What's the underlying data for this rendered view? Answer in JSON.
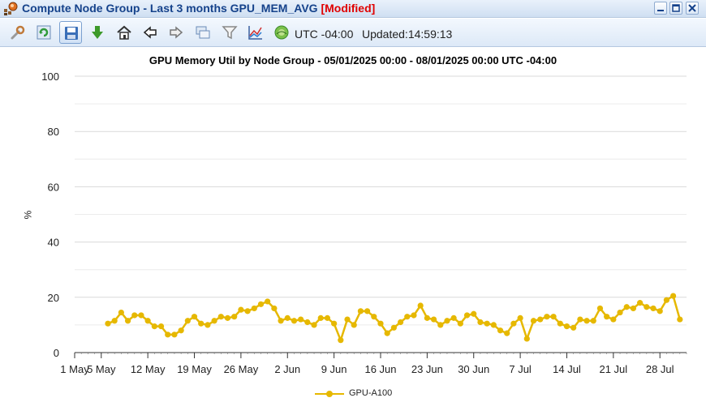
{
  "window": {
    "title": "Compute Node Group - Last 3 months GPU_MEM_AVG",
    "modified_tag": "[Modified]",
    "app_icon": "node-group-icon",
    "buttons": [
      "minimize-icon",
      "maximize-icon",
      "close-icon"
    ]
  },
  "toolbar": {
    "buttons": [
      "wrench-icon",
      "refresh-icon",
      "save-icon",
      "download-icon",
      "home-icon",
      "back-arrow-icon",
      "forward-arrow-icon",
      "windows-icon",
      "filter-icon",
      "chart-icon",
      "globe-icon"
    ],
    "timezone": "UTC -04:00",
    "updated": "Updated:14:59:13"
  },
  "colors": {
    "series": "#e6b800",
    "title_text": "#15428b",
    "modified": "#e00000"
  },
  "chart_data": {
    "type": "line",
    "title": "GPU Memory Util by Node Group - 05/01/2025 00:00 - 08/01/2025 00:00 UTC -04:00",
    "ylabel": "%",
    "xlabel": "",
    "ylim": [
      0,
      100
    ],
    "yticks": [
      0,
      20,
      40,
      60,
      80,
      100
    ],
    "xlim": [
      "2025-05-01",
      "2025-08-01"
    ],
    "xticks": [
      {
        "date": "2025-05-01",
        "label": "1 May"
      },
      {
        "date": "2025-05-05",
        "label": "5 May"
      },
      {
        "date": "2025-05-12",
        "label": "12 May"
      },
      {
        "date": "2025-05-19",
        "label": "19 May"
      },
      {
        "date": "2025-05-26",
        "label": "26 May"
      },
      {
        "date": "2025-06-02",
        "label": "2 Jun"
      },
      {
        "date": "2025-06-09",
        "label": "9 Jun"
      },
      {
        "date": "2025-06-16",
        "label": "16 Jun"
      },
      {
        "date": "2025-06-23",
        "label": "23 Jun"
      },
      {
        "date": "2025-06-30",
        "label": "30 Jun"
      },
      {
        "date": "2025-07-07",
        "label": "7 Jul"
      },
      {
        "date": "2025-07-14",
        "label": "14 Jul"
      },
      {
        "date": "2025-07-21",
        "label": "21 Jul"
      },
      {
        "date": "2025-07-28",
        "label": "28 Jul"
      }
    ],
    "grid": true,
    "legend_position": "bottom",
    "series": [
      {
        "name": "GPU-A100",
        "x": [
          "2025-05-06",
          "2025-05-07",
          "2025-05-08",
          "2025-05-09",
          "2025-05-10",
          "2025-05-11",
          "2025-05-12",
          "2025-05-13",
          "2025-05-14",
          "2025-05-15",
          "2025-05-16",
          "2025-05-17",
          "2025-05-18",
          "2025-05-19",
          "2025-05-20",
          "2025-05-21",
          "2025-05-22",
          "2025-05-23",
          "2025-05-24",
          "2025-05-25",
          "2025-05-26",
          "2025-05-27",
          "2025-05-28",
          "2025-05-29",
          "2025-05-30",
          "2025-05-31",
          "2025-06-01",
          "2025-06-02",
          "2025-06-03",
          "2025-06-04",
          "2025-06-05",
          "2025-06-06",
          "2025-06-07",
          "2025-06-08",
          "2025-06-09",
          "2025-06-10",
          "2025-06-11",
          "2025-06-12",
          "2025-06-13",
          "2025-06-14",
          "2025-06-15",
          "2025-06-16",
          "2025-06-17",
          "2025-06-18",
          "2025-06-19",
          "2025-06-20",
          "2025-06-21",
          "2025-06-22",
          "2025-06-23",
          "2025-06-24",
          "2025-06-25",
          "2025-06-26",
          "2025-06-27",
          "2025-06-28",
          "2025-06-29",
          "2025-06-30",
          "2025-07-01",
          "2025-07-02",
          "2025-07-03",
          "2025-07-04",
          "2025-07-05",
          "2025-07-06",
          "2025-07-07",
          "2025-07-08",
          "2025-07-09",
          "2025-07-10",
          "2025-07-11",
          "2025-07-12",
          "2025-07-13",
          "2025-07-14",
          "2025-07-15",
          "2025-07-16",
          "2025-07-17",
          "2025-07-18",
          "2025-07-19",
          "2025-07-20",
          "2025-07-21",
          "2025-07-22",
          "2025-07-23",
          "2025-07-24",
          "2025-07-25",
          "2025-07-26",
          "2025-07-27",
          "2025-07-28",
          "2025-07-29",
          "2025-07-30",
          "2025-07-31"
        ],
        "values": [
          10.5,
          11.5,
          14.5,
          11.5,
          13.5,
          13.5,
          11.5,
          9.5,
          9.5,
          6.5,
          6.5,
          8,
          11.5,
          13,
          10.5,
          10,
          11.5,
          13,
          12.5,
          13,
          15.5,
          15,
          16,
          17.5,
          18.5,
          16,
          11.5,
          12.5,
          11.5,
          12,
          11,
          10,
          12.5,
          12.5,
          10.5,
          4.5,
          12,
          10,
          15,
          15,
          13,
          10.5,
          7,
          9,
          11,
          13,
          13.5,
          17,
          12.5,
          12,
          10,
          11.5,
          12.5,
          10.5,
          13.5,
          14,
          11,
          10.5,
          10,
          8,
          7,
          10.5,
          12.5,
          5,
          11.5,
          12,
          13,
          13,
          10.5,
          9.5,
          9,
          12,
          11.5,
          11.5,
          16,
          13,
          12,
          14.5,
          16.5,
          16,
          18,
          16.5,
          16,
          15,
          19,
          20.5,
          12
        ]
      }
    ]
  }
}
